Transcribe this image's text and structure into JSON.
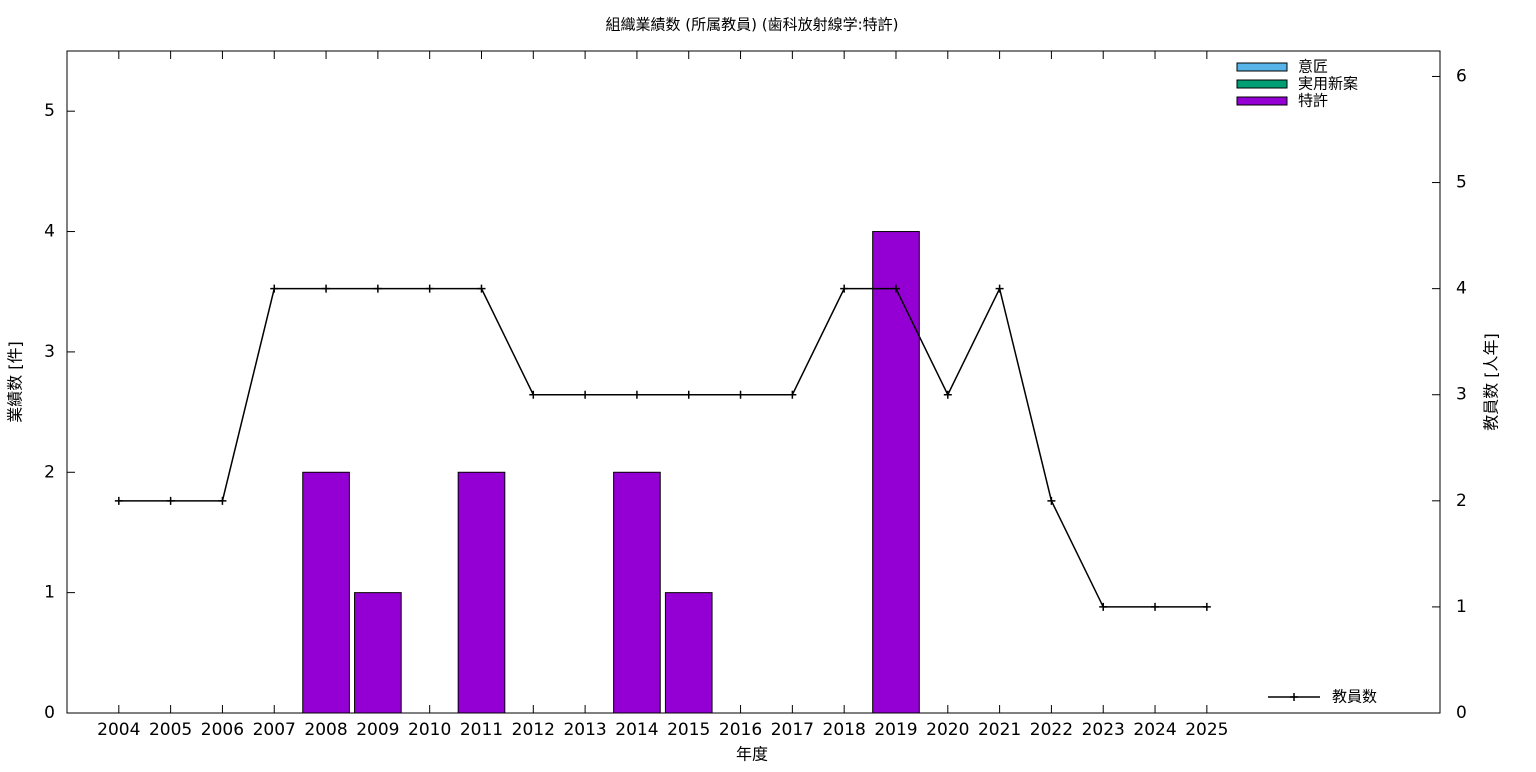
{
  "chart_data": {
    "type": "bar",
    "title": "組織業績数 (所属教員) (歯科放射線学:特許)",
    "x_label": "年度",
    "y_label": "業績数 [件]",
    "y2_label": "教員数 [人年]",
    "x": [
      2004,
      2005,
      2006,
      2007,
      2008,
      2009,
      2010,
      2011,
      2012,
      2013,
      2014,
      2015,
      2016,
      2017,
      2018,
      2019,
      2020,
      2021,
      2022,
      2023,
      2024,
      2025
    ],
    "xlim": [
      2003,
      2029.5
    ],
    "xticks": [
      2004,
      2005,
      2006,
      2007,
      2008,
      2009,
      2010,
      2011,
      2012,
      2013,
      2014,
      2015,
      2016,
      2017,
      2018,
      2019,
      2020,
      2021,
      2022,
      2023,
      2024,
      2025
    ],
    "ylim": [
      0,
      5.5
    ],
    "yticks": [
      0,
      1,
      2,
      3,
      4,
      5
    ],
    "y2lim": [
      0,
      6.24
    ],
    "y2ticks": [
      0,
      1,
      2,
      3,
      4,
      5,
      6
    ],
    "stacked": true,
    "series": [
      {
        "name": "意匠",
        "color": "#56b4e9",
        "values": [
          0,
          0,
          0,
          0,
          0,
          0,
          0,
          0,
          0,
          0,
          0,
          0,
          0,
          0,
          0,
          0,
          0,
          0,
          0,
          0,
          0,
          0
        ]
      },
      {
        "name": "実用新案",
        "color": "#009e73",
        "values": [
          0,
          0,
          0,
          0,
          0,
          0,
          0,
          0,
          0,
          0,
          0,
          0,
          0,
          0,
          0,
          0,
          0,
          0,
          0,
          0,
          0,
          0
        ]
      },
      {
        "name": "特許",
        "color": "#9400d3",
        "values": [
          0,
          0,
          0,
          0,
          2,
          1,
          0,
          2,
          0,
          0,
          2,
          1,
          0,
          0,
          0,
          4,
          0,
          0,
          0,
          0,
          0,
          0
        ]
      },
      {
        "name": "教員数",
        "type": "line",
        "axis": "y2",
        "color": "#000000",
        "values": [
          2,
          2,
          2,
          4,
          4,
          4,
          4,
          4,
          3,
          3,
          3,
          3,
          3,
          3,
          4,
          4,
          3,
          4,
          2,
          1,
          1,
          1
        ]
      }
    ]
  }
}
